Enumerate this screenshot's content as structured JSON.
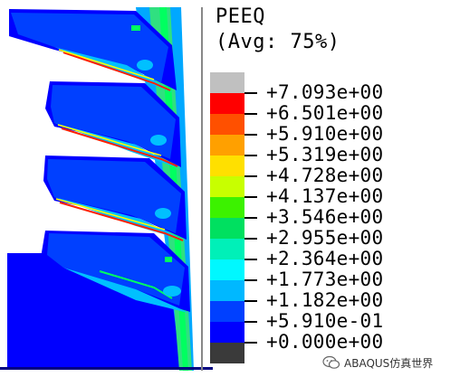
{
  "legend": {
    "title_line1": "PEEQ",
    "title_line2": "(Avg: 75%)",
    "values": [
      "+7.093e+00",
      "+6.501e+00",
      "+5.910e+00",
      "+5.319e+00",
      "+4.728e+00",
      "+4.137e+00",
      "+3.546e+00",
      "+2.955e+00",
      "+2.364e+00",
      "+1.773e+00",
      "+1.182e+00",
      "+5.910e-01",
      "+0.000e+00"
    ],
    "colors": [
      "#c0c0c0",
      "#ff0000",
      "#ff5000",
      "#ffa000",
      "#ffe000",
      "#c8ff00",
      "#3cf200",
      "#00e060",
      "#00f0b8",
      "#00f8ff",
      "#00b8ff",
      "#0040ff",
      "#0000ff",
      "#3a3a3a"
    ]
  },
  "watermark": {
    "text": "ABAQUS仿真世界",
    "icon": "wechat-icon"
  }
}
